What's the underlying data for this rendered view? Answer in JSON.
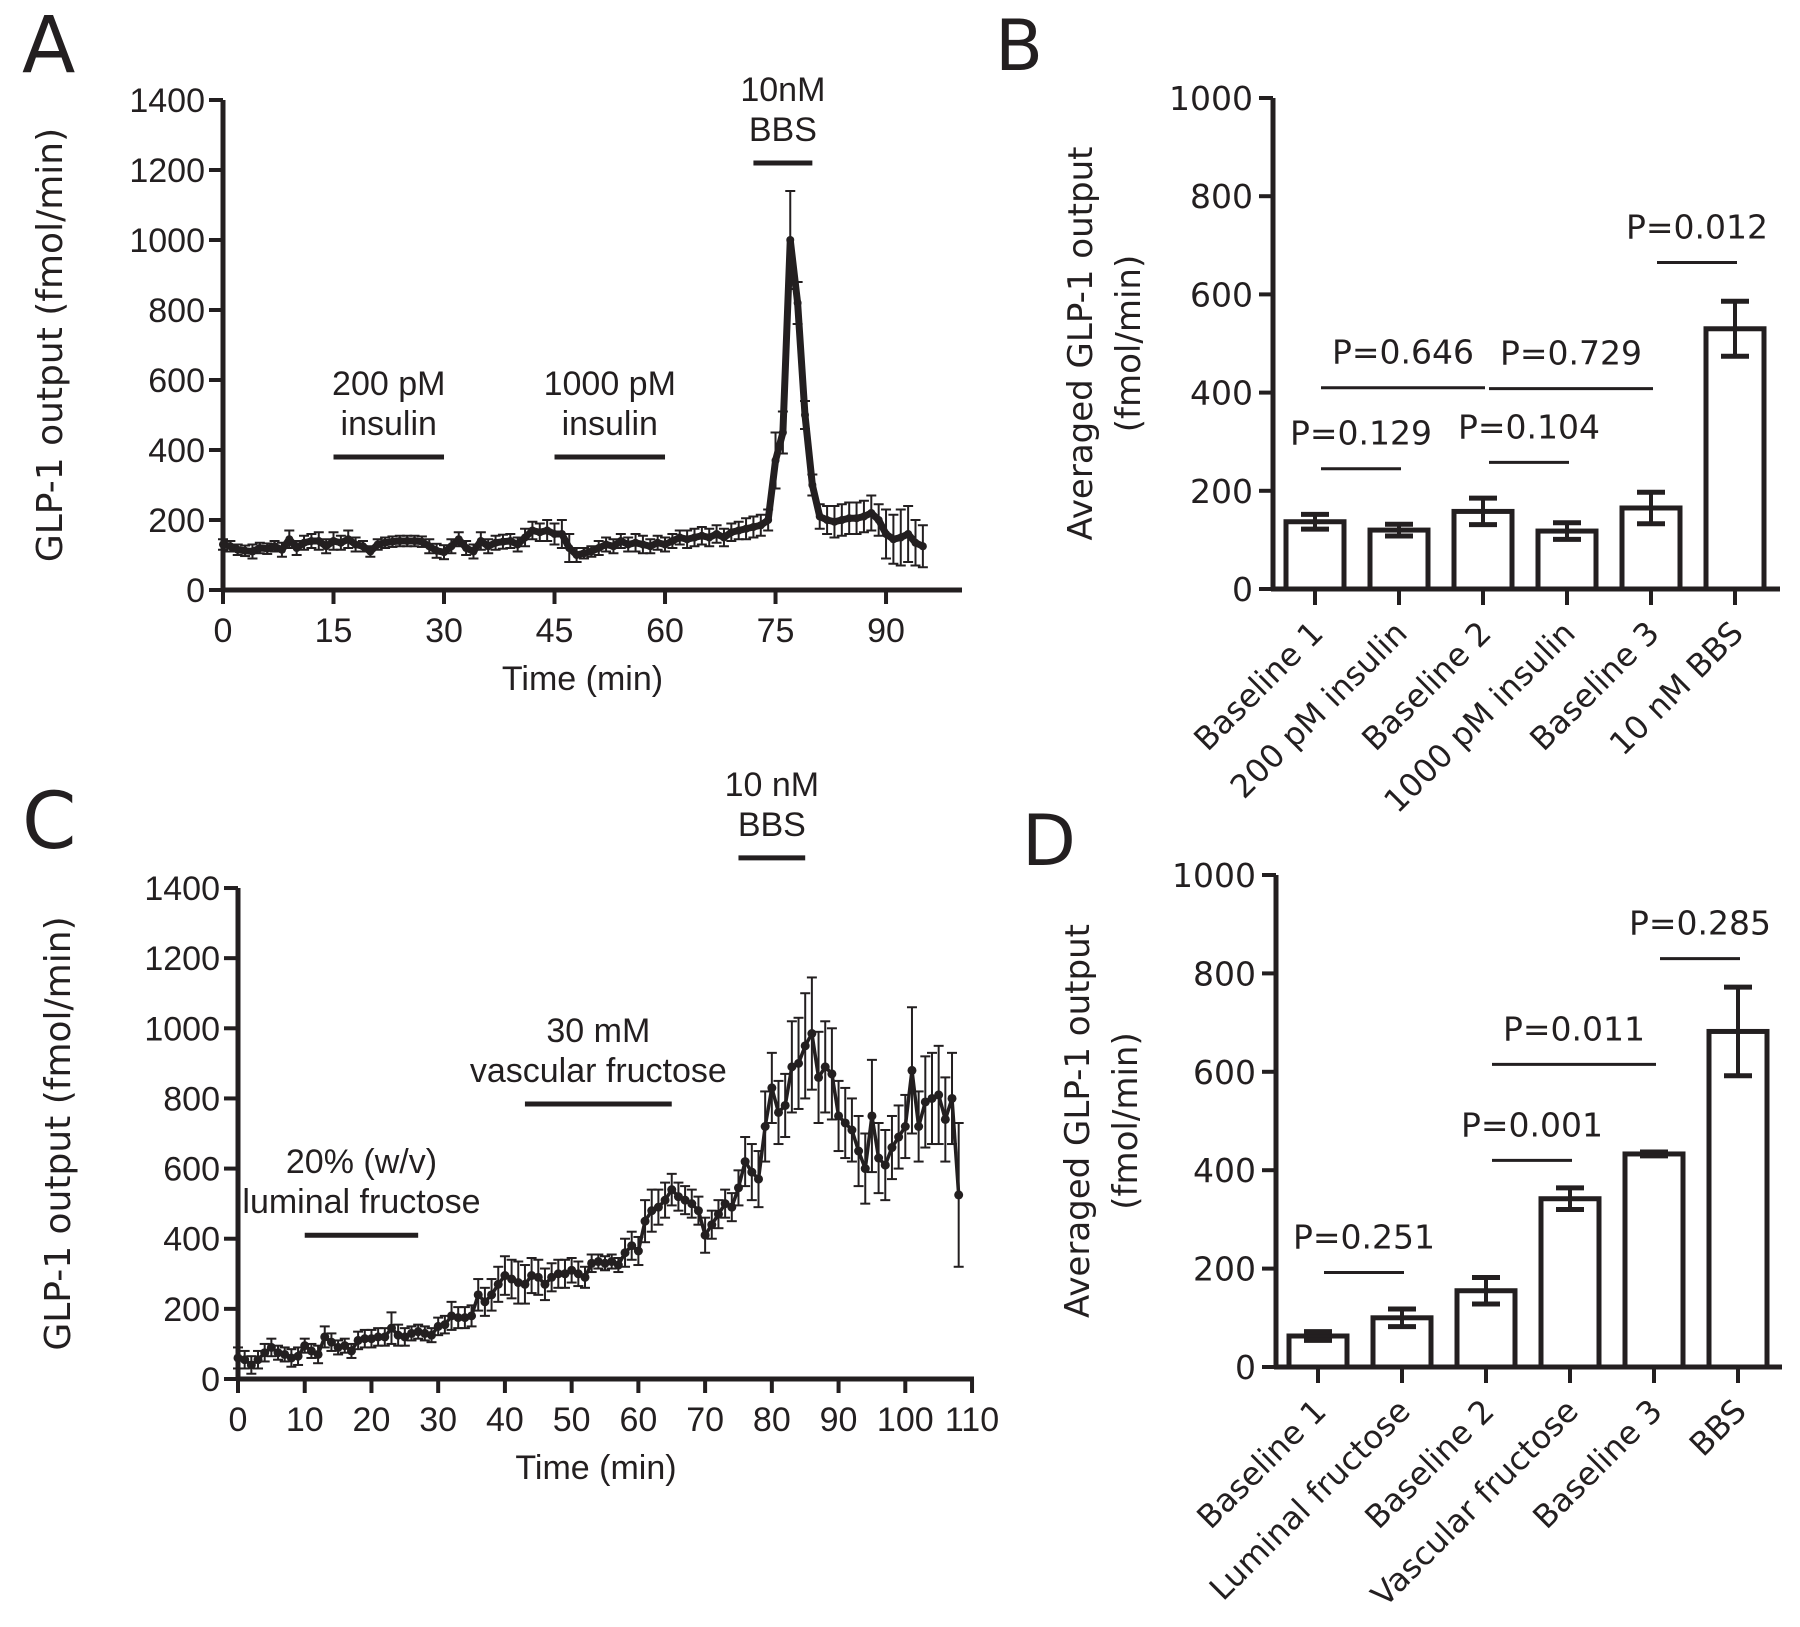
{
  "chart_data": [
    {
      "panel": "A",
      "type": "line",
      "xlabel": "Time (min)",
      "ylabel": "GLP-1 output (fmol/min)",
      "xlim": [
        0,
        100
      ],
      "ylim": [
        0,
        1400
      ],
      "xticks": [
        0,
        15,
        30,
        45,
        60,
        75,
        90
      ],
      "yticks": [
        0,
        200,
        400,
        600,
        800,
        1000,
        1200,
        1400
      ],
      "annotations": [
        {
          "lines": [
            "200 pM",
            "insulin"
          ],
          "x_start": 15,
          "x_end": 30,
          "y": 380
        },
        {
          "lines": [
            "1000 pM",
            "insulin"
          ],
          "x_start": 45,
          "x_end": 60,
          "y": 380
        },
        {
          "lines": [
            "10nM",
            "BBS"
          ],
          "x_start": 72,
          "x_end": 80,
          "y": 1220
        }
      ],
      "series": [
        {
          "name": "GLP-1 output",
          "x": [
            0,
            1,
            2,
            3,
            4,
            5,
            6,
            7,
            8,
            9,
            10,
            11,
            12,
            13,
            14,
            15,
            16,
            17,
            18,
            19,
            20,
            21,
            22,
            23,
            24,
            25,
            26,
            27,
            28,
            29,
            30,
            31,
            32,
            33,
            34,
            35,
            36,
            37,
            38,
            39,
            40,
            41,
            42,
            43,
            44,
            45,
            46,
            47,
            48,
            49,
            50,
            51,
            52,
            53,
            54,
            55,
            56,
            57,
            58,
            59,
            60,
            61,
            62,
            63,
            64,
            65,
            66,
            67,
            68,
            69,
            70,
            71,
            72,
            73,
            74,
            75,
            76,
            77,
            78,
            79,
            80,
            81,
            82,
            83,
            84,
            85,
            86,
            87,
            88,
            89,
            90,
            91,
            92,
            93,
            94,
            95
          ],
          "y": [
            130,
            125,
            115,
            112,
            110,
            120,
            118,
            125,
            115,
            145,
            120,
            135,
            140,
            140,
            125,
            140,
            135,
            145,
            130,
            125,
            110,
            130,
            135,
            138,
            140,
            140,
            140,
            138,
            125,
            112,
            108,
            125,
            145,
            120,
            110,
            140,
            125,
            135,
            138,
            140,
            130,
            150,
            170,
            165,
            170,
            160,
            160,
            120,
            100,
            105,
            110,
            120,
            130,
            125,
            140,
            130,
            135,
            130,
            125,
            135,
            130,
            140,
            150,
            145,
            150,
            155,
            150,
            160,
            150,
            165,
            170,
            175,
            180,
            185,
            200,
            370,
            450,
            1000,
            820,
            500,
            300,
            210,
            200,
            195,
            200,
            205,
            205,
            210,
            220,
            200,
            160,
            145,
            150,
            160,
            135,
            125
          ],
          "err": [
            15,
            15,
            15,
            15,
            20,
            15,
            15,
            15,
            20,
            25,
            20,
            20,
            20,
            25,
            20,
            25,
            20,
            25,
            20,
            15,
            15,
            15,
            15,
            15,
            15,
            15,
            15,
            15,
            20,
            20,
            20,
            20,
            20,
            20,
            20,
            25,
            20,
            20,
            20,
            20,
            20,
            25,
            25,
            25,
            30,
            30,
            40,
            40,
            20,
            15,
            15,
            20,
            20,
            20,
            20,
            20,
            25,
            25,
            20,
            20,
            20,
            20,
            20,
            25,
            25,
            25,
            25,
            25,
            25,
            25,
            25,
            30,
            30,
            30,
            30,
            80,
            60,
            140,
            60,
            40,
            30,
            35,
            40,
            45,
            45,
            45,
            45,
            45,
            50,
            45,
            70,
            70,
            80,
            80,
            65,
            60
          ]
        }
      ]
    },
    {
      "panel": "B",
      "type": "bar",
      "ylabel": [
        "Averaged GLP-1 output",
        "(fmol/min)"
      ],
      "ylim": [
        0,
        1000
      ],
      "yticks": [
        0,
        200,
        400,
        600,
        800,
        1000
      ],
      "categories": [
        "Baseline 1",
        "200 pM insulin",
        "Baseline 2",
        "1000 pM insulin",
        "Baseline 3",
        "10 nM BBS"
      ],
      "values": [
        137,
        120,
        158,
        118,
        165,
        530
      ],
      "err": [
        15,
        12,
        27,
        17,
        32,
        56
      ],
      "comparisons": [
        {
          "label": "P=0.129",
          "from": 0,
          "to": 1,
          "y": 245
        },
        {
          "label": "P=0.646",
          "from": 0,
          "to": 2,
          "y": 410
        },
        {
          "label": "P=0.104",
          "from": 2,
          "to": 3,
          "y": 258
        },
        {
          "label": "P=0.729",
          "from": 2,
          "to": 4,
          "y": 408
        },
        {
          "label": "P=0.012",
          "from": 4,
          "to": 5,
          "y": 665
        }
      ]
    },
    {
      "panel": "C",
      "type": "line",
      "xlabel": "Time (min)",
      "ylabel": "GLP-1 output (fmol/min)",
      "xlim": [
        0,
        110
      ],
      "ylim": [
        0,
        1400
      ],
      "xticks": [
        0,
        10,
        20,
        30,
        40,
        50,
        60,
        70,
        80,
        90,
        100,
        110
      ],
      "yticks": [
        0,
        200,
        400,
        600,
        800,
        1000,
        1200,
        1400
      ],
      "annotations": [
        {
          "lines": [
            "20% (w/v)",
            "luminal fructose"
          ],
          "x_start": 10,
          "x_end": 27,
          "y": 410
        },
        {
          "lines": [
            "30 mM",
            "vascular fructose"
          ],
          "x_start": 43,
          "x_end": 65,
          "y": 784
        },
        {
          "lines": [
            "10 nM",
            "BBS"
          ],
          "x_start": 75,
          "x_end": 85,
          "y": 1486
        }
      ],
      "series": [
        {
          "name": "GLP-1 output",
          "x": [
            0,
            1,
            2,
            3,
            4,
            5,
            6,
            7,
            8,
            9,
            10,
            11,
            12,
            13,
            14,
            15,
            16,
            17,
            18,
            19,
            20,
            21,
            22,
            23,
            24,
            25,
            26,
            27,
            28,
            29,
            30,
            31,
            32,
            33,
            34,
            35,
            36,
            37,
            38,
            39,
            40,
            41,
            42,
            43,
            44,
            45,
            46,
            47,
            48,
            49,
            50,
            51,
            52,
            53,
            54,
            55,
            56,
            57,
            58,
            59,
            60,
            61,
            62,
            63,
            64,
            65,
            66,
            67,
            68,
            69,
            70,
            71,
            72,
            73,
            74,
            75,
            76,
            77,
            78,
            79,
            80,
            81,
            82,
            83,
            84,
            85,
            86,
            87,
            88,
            89,
            90,
            91,
            92,
            93,
            94,
            95,
            96,
            97,
            98,
            99,
            100,
            101,
            102,
            103,
            104,
            105,
            106,
            107,
            108
          ],
          "y": [
            60,
            55,
            40,
            55,
            75,
            90,
            75,
            70,
            60,
            65,
            95,
            80,
            70,
            120,
            105,
            90,
            95,
            80,
            110,
            115,
            115,
            120,
            120,
            145,
            125,
            120,
            130,
            135,
            130,
            125,
            150,
            155,
            180,
            175,
            175,
            180,
            240,
            220,
            240,
            270,
            295,
            285,
            275,
            270,
            295,
            290,
            270,
            290,
            300,
            300,
            310,
            300,
            290,
            330,
            335,
            330,
            335,
            325,
            360,
            380,
            365,
            450,
            480,
            490,
            510,
            540,
            520,
            510,
            500,
            480,
            410,
            440,
            470,
            500,
            490,
            545,
            620,
            590,
            570,
            720,
            830,
            760,
            780,
            890,
            900,
            950,
            985,
            860,
            890,
            870,
            750,
            730,
            710,
            650,
            600,
            750,
            630,
            610,
            660,
            690,
            720,
            880,
            720,
            790,
            800,
            810,
            740,
            800,
            525
          ],
          "err": [
            30,
            25,
            25,
            25,
            25,
            25,
            20,
            20,
            25,
            25,
            20,
            20,
            25,
            30,
            25,
            20,
            20,
            20,
            25,
            25,
            25,
            25,
            25,
            45,
            30,
            25,
            20,
            20,
            20,
            20,
            25,
            25,
            40,
            30,
            30,
            30,
            45,
            40,
            45,
            50,
            55,
            55,
            60,
            55,
            50,
            50,
            45,
            40,
            40,
            40,
            35,
            35,
            30,
            25,
            20,
            20,
            20,
            20,
            40,
            40,
            40,
            60,
            60,
            50,
            50,
            45,
            40,
            40,
            40,
            40,
            50,
            40,
            40,
            40,
            40,
            50,
            70,
            80,
            80,
            100,
            100,
            90,
            90,
            130,
            130,
            150,
            160,
            130,
            130,
            130,
            100,
            100,
            90,
            100,
            100,
            160,
            100,
            100,
            90,
            90,
            90,
            180,
            100,
            130,
            130,
            140,
            120,
            130,
            205
          ]
        }
      ]
    },
    {
      "panel": "D",
      "type": "bar",
      "ylabel": [
        "Averaged GLP-1 output",
        "(fmol/min)"
      ],
      "ylim": [
        0,
        1000
      ],
      "yticks": [
        0,
        200,
        400,
        600,
        800,
        1000
      ],
      "categories": [
        "Baseline 1",
        "Luminal fructose",
        "Baseline 2",
        "Vascular fructose",
        "Baseline 3",
        "BBS"
      ],
      "values": [
        63,
        100,
        155,
        342,
        433,
        682
      ],
      "err": [
        9,
        18,
        27,
        22,
        4,
        90
      ],
      "comparisons": [
        {
          "label": "P=0.251",
          "from": 0,
          "to": 1,
          "y": 192
        },
        {
          "label": "P=0.001",
          "from": 2,
          "to": 3,
          "y": 420
        },
        {
          "label": "P=0.011",
          "from": 2,
          "to": 4,
          "y": 615
        },
        {
          "label": "P=0.285",
          "from": 4,
          "to": 5,
          "y": 830
        }
      ]
    }
  ],
  "panel_letters": [
    "A",
    "B",
    "C",
    "D"
  ],
  "colors": {
    "ink": "#231f20",
    "background": "#ffffff"
  }
}
